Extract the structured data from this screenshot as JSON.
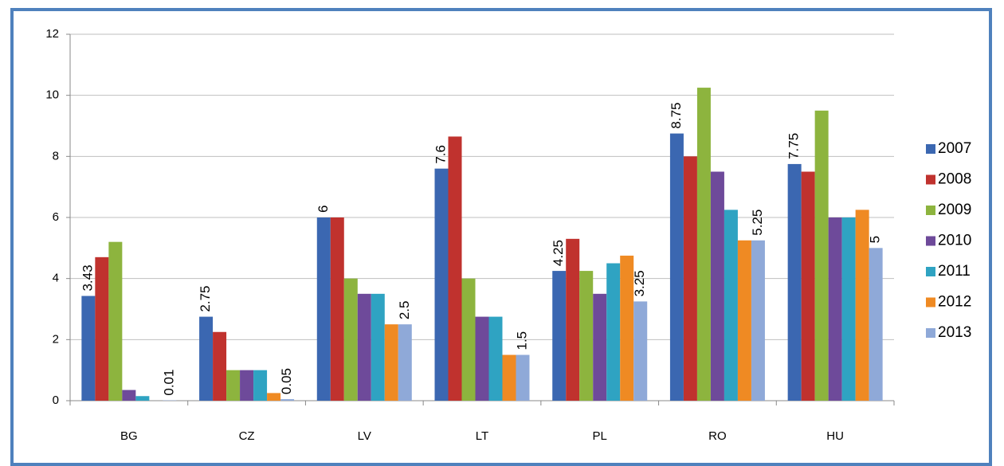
{
  "chart_data": {
    "type": "bar",
    "categories": [
      "BG",
      "CZ",
      "LV",
      "LT",
      "PL",
      "RO",
      "HU"
    ],
    "series": [
      {
        "name": "2007",
        "color": "#3b67b1",
        "data_labels": true,
        "values": [
          3.43,
          2.75,
          6,
          7.6,
          4.25,
          8.75,
          7.75
        ]
      },
      {
        "name": "2008",
        "color": "#c0322e",
        "values": [
          4.7,
          2.25,
          6,
          8.65,
          5.3,
          8,
          7.5
        ]
      },
      {
        "name": "2009",
        "color": "#8db43e",
        "values": [
          5.2,
          1,
          4,
          4,
          4.25,
          10.25,
          9.5
        ]
      },
      {
        "name": "2010",
        "color": "#6e4a9a",
        "values": [
          0.35,
          1,
          3.5,
          2.75,
          3.5,
          7.5,
          6
        ]
      },
      {
        "name": "2011",
        "color": "#2fa3c2",
        "values": [
          0.15,
          1,
          3.5,
          2.75,
          4.5,
          6.25,
          6
        ]
      },
      {
        "name": "2012",
        "color": "#ef8a23",
        "values": [
          0,
          0.25,
          2.5,
          1.5,
          4.75,
          5.25,
          6.25
        ]
      },
      {
        "name": "2013",
        "color": "#8fa9d8",
        "data_labels": true,
        "values": [
          0.01,
          0.05,
          2.5,
          1.5,
          3.25,
          5.25,
          5
        ]
      }
    ],
    "ylim": [
      0,
      12
    ],
    "yticks": [
      0,
      2,
      4,
      6,
      8,
      10,
      12
    ],
    "grid": true,
    "legend": "right"
  }
}
